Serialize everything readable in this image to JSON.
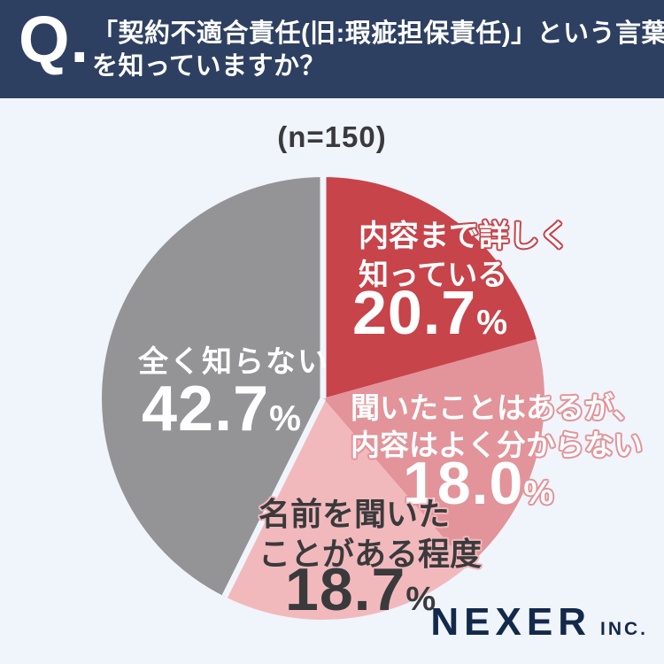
{
  "header": {
    "q_mark": "Q.",
    "question_line1": "「契約不適合責任(旧:瑕疵担保責任)」という言葉",
    "question_line2": "を知っていますか？"
  },
  "survey": {
    "n_label": "(n=150)"
  },
  "chart_data": {
    "type": "pie",
    "title": "「契約不適合責任(旧:瑕疵担保責任)」という言葉を知っていますか？",
    "n": 150,
    "percent_sign": "%",
    "start_angle_deg": 0,
    "direction": "clockwise",
    "legend_position": "labels-on-slices",
    "segments": [
      {
        "label": "内容まで詳しく知っている",
        "label_lines": [
          "内容まで詳しく",
          "知っている"
        ],
        "value": 20.7,
        "value_text": "20.7",
        "color": "#c7444b",
        "text_color": "#ffffff"
      },
      {
        "label": "聞いたことはあるが、内容はよく分からない",
        "label_lines": [
          "聞いたことはあるが、",
          "内容はよく分からない"
        ],
        "value": 18.0,
        "value_text": "18.0",
        "color": "#e2949a",
        "text_color": "#ffffff"
      },
      {
        "label": "名前を聞いたことがある程度",
        "label_lines": [
          "名前を聞いた",
          "ことがある程度"
        ],
        "value": 18.7,
        "value_text": "18.7",
        "color": "#f2b9bd",
        "text_color": "#3a3a3c"
      },
      {
        "label": "全く知らない",
        "label_lines": [
          "全く知らない"
        ],
        "value": 42.7,
        "value_text": "42.7",
        "color": "#949396",
        "text_color": "#ffffff"
      }
    ],
    "white_divider_segment_starts": [
      0,
      3
    ],
    "divider_color": "#f0f4fb"
  },
  "footer": {
    "brand": "NEXER",
    "brand_suffix": "INC."
  },
  "colors": {
    "header_bg": "#2e4062",
    "background": "#f0f4fb",
    "brand_navy": "#13294b"
  }
}
